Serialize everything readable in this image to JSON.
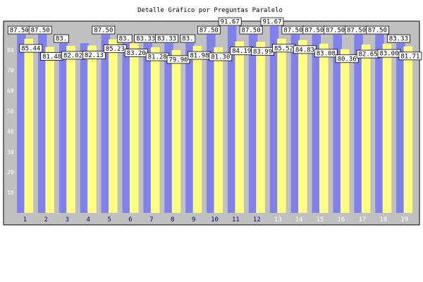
{
  "chart_data": {
    "type": "bar",
    "title": "Detalle Gráfico por Preguntas Paralelo",
    "xlabel": "",
    "ylabel": "",
    "ylim": [
      0,
      100
    ],
    "yticks": [
      10,
      20,
      30,
      40,
      50,
      60,
      70,
      80,
      90
    ],
    "grid": false,
    "legend": "none",
    "categories": [
      "1",
      "2",
      "3",
      "4",
      "5",
      "6",
      "7",
      "8",
      "9",
      "10",
      "11",
      "12",
      "13",
      "14",
      "15",
      "16",
      "17",
      "18",
      "19"
    ],
    "series": [
      {
        "color": "#8080f0",
        "values": [
          87.5,
          87.5,
          83.33,
          83.33,
          87.5,
          83.33,
          83.33,
          83.33,
          83.33,
          87.5,
          91.67,
          87.5,
          91.67,
          87.5,
          87.5,
          87.5,
          87.5,
          87.5,
          83.33
        ],
        "labels": [
          "87.50",
          "87.50",
          "83.",
          "",
          "87.50",
          "83.",
          "83.33",
          "83.33",
          "83.",
          "87.50",
          "91.67",
          "87.50",
          "91.67",
          "87.50",
          "87.50",
          "87.50",
          "87.50",
          "87.50",
          "83.33"
        ]
      },
      {
        "color": "#ffff80",
        "values": [
          85.44,
          81.48,
          82.02,
          82.13,
          85.23,
          83.2,
          81.28,
          79.96,
          81.98,
          81.3,
          84.19,
          83.99,
          85.52,
          84.83,
          83.08,
          80.36,
          82.65,
          83.0,
          81.71
        ],
        "labels": [
          "85.44",
          "81.48",
          "82.02",
          "82.13",
          "85.23",
          "83.20",
          "81.28",
          "79.96",
          "81.98",
          "81.30",
          "84.19",
          "83.99",
          "85.52",
          "84.83",
          "83.08",
          "80.36",
          "82.65",
          "83.00",
          "81.71"
        ]
      }
    ],
    "colors": {
      "background": "#ffffff",
      "plot_area": "#c0c0c0",
      "label_box": "#ffffff",
      "tick_dark": "#000080",
      "tick_light": "#ffffff"
    }
  }
}
